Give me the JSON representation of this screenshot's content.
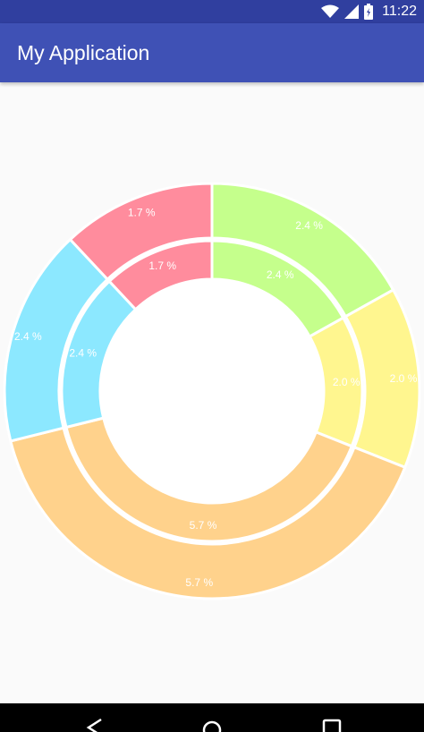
{
  "status_bar": {
    "time": "11:22",
    "icons": [
      "wifi-icon",
      "cell-signal-icon",
      "battery-icon"
    ]
  },
  "app_bar": {
    "title": "My Application"
  },
  "chart_data": {
    "type": "pie",
    "style": "nested-donut",
    "rings": [
      {
        "name": "",
        "slices": [
          {
            "value": 2.4,
            "label": "2.4 %",
            "color": "#c5ff8c"
          },
          {
            "value": 2.0,
            "label": "2.0 %",
            "color": "#fff68f"
          },
          {
            "value": 5.7,
            "label": "5.7 %",
            "color": "#ffd28c"
          },
          {
            "value": 2.4,
            "label": "2.4 %",
            "color": "#8ce8ff"
          },
          {
            "value": 1.7,
            "label": "1.7 %",
            "color": "#ff8c9d"
          }
        ]
      },
      {
        "name": "",
        "slices": [
          {
            "value": 2.4,
            "label": "2.4 %",
            "color": "#c5ff8c"
          },
          {
            "value": 2.0,
            "label": "2.0 %",
            "color": "#fff68f"
          },
          {
            "value": 5.7,
            "label": "5.7 %",
            "color": "#ffd28c"
          },
          {
            "value": 2.4,
            "label": "2.4 %",
            "color": "#8ce8ff"
          },
          {
            "value": 1.7,
            "label": "1.7 %",
            "color": "#ff8c9d"
          }
        ]
      }
    ],
    "label_color": "#ffffff",
    "legend": "none"
  },
  "nav_bar": {
    "buttons": [
      "back-icon",
      "home-icon",
      "recent-apps-icon"
    ]
  }
}
